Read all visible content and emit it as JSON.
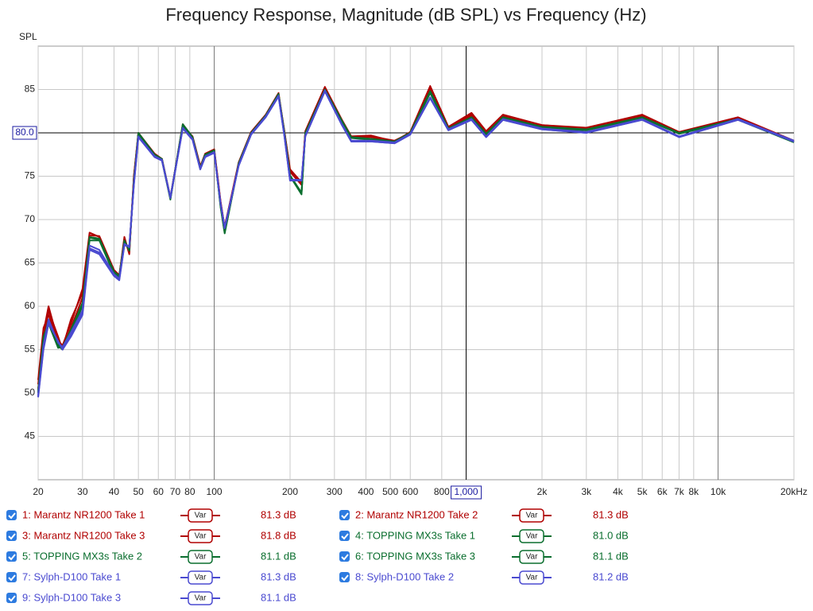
{
  "chart_data": {
    "type": "line",
    "title": "Frequency Response, Magnitude (dB SPL) vs Frequency (Hz)",
    "y_label": "SPL",
    "log_x": true,
    "grid": true,
    "xlim": [
      20,
      20000
    ],
    "ylim": [
      40,
      90
    ],
    "xticks": [
      20,
      30,
      40,
      50,
      60,
      70,
      80,
      100,
      200,
      300,
      400,
      500,
      600,
      800,
      {
        "value": 2000,
        "label": "2k"
      },
      {
        "value": 3000,
        "label": "3k"
      },
      {
        "value": 4000,
        "label": "4k"
      },
      {
        "value": 5000,
        "label": "5k"
      },
      {
        "value": 6000,
        "label": "6k"
      },
      {
        "value": 7000,
        "label": "7k"
      },
      {
        "value": 8000,
        "label": "8k"
      },
      {
        "value": 10000,
        "label": "10k"
      },
      {
        "value": 20000,
        "label": "20kHz"
      }
    ],
    "yticks": [
      45,
      50,
      55,
      60,
      65,
      70,
      75,
      85
    ],
    "cursor": {
      "x": {
        "value": 1000,
        "label": "1,000"
      },
      "y": {
        "value": 80,
        "label": "80.0"
      }
    },
    "legend_button": "Var",
    "x": [
      20,
      21,
      22,
      24,
      25,
      27,
      30,
      32,
      35,
      40,
      42,
      44,
      46,
      48,
      50,
      58,
      62,
      67,
      75,
      82,
      88,
      92,
      100,
      106,
      110,
      125,
      140,
      160,
      180,
      190,
      200,
      222,
      230,
      275,
      320,
      350,
      420,
      520,
      600,
      720,
      850,
      1050,
      1200,
      1400,
      2000,
      3000,
      5000,
      7000,
      12000,
      20000
    ],
    "series": [
      {
        "name": "1: Marantz NR1200 Take 1",
        "color": "#b00000",
        "level": "81.3 dB",
        "values": [
          51,
          57,
          60,
          56,
          55.5,
          58,
          62,
          68.5,
          68,
          64,
          63.5,
          68,
          66,
          75,
          80,
          77.5,
          77,
          72.5,
          81,
          79.5,
          76,
          77.5,
          78,
          72,
          69,
          76.5,
          80,
          82,
          84.5,
          80,
          75.5,
          74,
          80,
          85.2,
          81.5,
          79.5,
          79.5,
          79,
          80,
          85.3,
          80.5,
          82.2,
          80,
          82,
          80.8,
          80.5,
          82,
          80,
          81.7,
          79
        ]
      },
      {
        "name": "2: Marantz NR1200 Take 2",
        "color": "#b00000",
        "level": "81.3 dB",
        "values": [
          50.5,
          56,
          59.5,
          56.5,
          55,
          57.5,
          61,
          68,
          67.8,
          63.8,
          63.4,
          67.5,
          66.5,
          75,
          80,
          77.6,
          77,
          72.6,
          80.8,
          79.6,
          76.2,
          77.3,
          77.9,
          71.8,
          69.2,
          76.4,
          79.9,
          82,
          84.4,
          80.2,
          75.6,
          74.2,
          80.1,
          85.1,
          81.4,
          79.4,
          79.6,
          79.1,
          80,
          85,
          80.6,
          82,
          80.1,
          81.9,
          80.9,
          80.5,
          81.9,
          80,
          81.6,
          79
        ]
      },
      {
        "name": "3: Marantz NR1200 Take 3",
        "color": "#b00000",
        "level": "81.8 dB",
        "values": [
          51.5,
          57.5,
          59,
          56,
          55.2,
          58.5,
          61.5,
          68.2,
          68.1,
          64.2,
          63.6,
          67.8,
          66.2,
          74.8,
          79.9,
          77.4,
          76.9,
          72.4,
          80.9,
          79.4,
          76.1,
          77.6,
          78.1,
          72.1,
          69.1,
          76.6,
          80.1,
          82.1,
          84.6,
          80.1,
          75.8,
          74.3,
          80.2,
          85.3,
          81.6,
          79.6,
          79.7,
          79,
          80.1,
          85.4,
          80.7,
          82.3,
          80.2,
          82.1,
          80.9,
          80.6,
          82.1,
          80.1,
          81.8,
          79.1
        ]
      },
      {
        "name": "4: TOPPING MX3s Take 1",
        "color": "#0a6e2e",
        "level": "81.0 dB",
        "values": [
          50,
          56,
          58.5,
          55.5,
          55,
          57,
          60,
          68,
          67.8,
          64,
          63.5,
          67.5,
          66.5,
          74.5,
          80,
          77.5,
          77,
          72.5,
          81,
          79.5,
          76,
          77.5,
          78,
          71.5,
          68.5,
          76.5,
          80,
          82,
          84.5,
          80,
          75,
          73,
          80,
          85,
          81.5,
          79.5,
          79.3,
          79,
          80,
          84.8,
          80.5,
          81.8,
          79.8,
          81.8,
          80.6,
          80.3,
          81.8,
          79.9,
          81.6,
          79
        ]
      },
      {
        "name": "5: TOPPING MX3s Take 2",
        "color": "#0a6e2e",
        "level": "81.1 dB",
        "values": [
          50.3,
          56.5,
          58,
          55.2,
          55.3,
          57.3,
          60.4,
          67.6,
          67.6,
          63.7,
          63.3,
          67.3,
          66.6,
          74.6,
          79.8,
          77.3,
          76.8,
          72.3,
          80.8,
          79.3,
          75.8,
          77.4,
          77.8,
          71.6,
          68.6,
          76.3,
          79.8,
          81.9,
          84.3,
          79.9,
          75.1,
          73.1,
          79.9,
          85,
          81.3,
          79.4,
          79.2,
          78.9,
          79.9,
          84.6,
          80.4,
          81.7,
          79.8,
          81.7,
          80.6,
          80.3,
          81.7,
          79.9,
          81.5,
          78.9
        ]
      },
      {
        "name": "6: TOPPING MX3s Take 3",
        "color": "#0a6e2e",
        "level": "81.1 dB",
        "values": [
          50.1,
          55.8,
          58.3,
          55.6,
          55.1,
          57.1,
          60.2,
          67.9,
          67.7,
          63.9,
          63.4,
          67.6,
          66.4,
          74.4,
          79.9,
          77.4,
          76.9,
          72.4,
          80.9,
          79.4,
          75.9,
          77.5,
          77.9,
          71.4,
          68.4,
          76.4,
          79.9,
          82,
          84.4,
          80,
          75,
          72.9,
          80,
          84.9,
          81.4,
          79.5,
          79.3,
          79,
          80,
          84.7,
          80.5,
          81.8,
          79.9,
          81.8,
          80.7,
          80.4,
          81.8,
          80,
          81.6,
          79
        ]
      },
      {
        "name": "7: Sylph-D100 Take 1",
        "color": "#4a4ad0",
        "level": "81.3 dB",
        "values": [
          49.5,
          55,
          58,
          56,
          55,
          56.5,
          59,
          66.5,
          66,
          63.5,
          63,
          67,
          67,
          74,
          79.5,
          77.2,
          76.8,
          72.5,
          80.5,
          79.2,
          75.8,
          77.2,
          77.7,
          71.8,
          69,
          76.2,
          79.8,
          81.8,
          84.2,
          79.6,
          74.5,
          74.5,
          79.6,
          84.8,
          81,
          79,
          79,
          78.8,
          79.8,
          84,
          80.3,
          81.5,
          79.5,
          81.5,
          80.4,
          80,
          81.5,
          79.5,
          81.5,
          79
        ]
      },
      {
        "name": "8: Sylph-D100 Take 2",
        "color": "#4a4ad0",
        "level": "81.2 dB",
        "values": [
          49.8,
          55.5,
          58.5,
          55.8,
          55.3,
          57,
          59.5,
          67,
          66.5,
          63.7,
          63.2,
          67.2,
          66.8,
          74.2,
          79.6,
          77.3,
          76.9,
          72.6,
          80.6,
          79.3,
          75.9,
          77.3,
          77.8,
          71.9,
          69.1,
          76.3,
          79.9,
          81.9,
          84.3,
          79.7,
          74.6,
          74.6,
          79.7,
          84.9,
          81.1,
          79.1,
          79.1,
          78.9,
          79.9,
          84.1,
          80.4,
          81.6,
          79.6,
          81.6,
          80.5,
          80.1,
          81.6,
          79.6,
          81.6,
          79.1
        ]
      },
      {
        "name": "9: Sylph-D100 Take 3",
        "color": "#4a4ad0",
        "level": "81.1 dB",
        "values": [
          49.6,
          55.2,
          58.2,
          55.9,
          55.1,
          56.8,
          59.2,
          66.7,
          66.2,
          63.6,
          63.1,
          67.1,
          66.9,
          74.1,
          79.5,
          77.2,
          76.8,
          72.5,
          80.5,
          79.2,
          75.8,
          77.2,
          77.7,
          71.8,
          69,
          76.2,
          79.8,
          81.8,
          84.2,
          79.6,
          74.5,
          74.5,
          79.6,
          84.8,
          81,
          79,
          79,
          78.8,
          79.8,
          84,
          80.3,
          81.5,
          79.5,
          81.5,
          80.4,
          80,
          81.5,
          79.5,
          81.5,
          79
        ]
      }
    ]
  }
}
